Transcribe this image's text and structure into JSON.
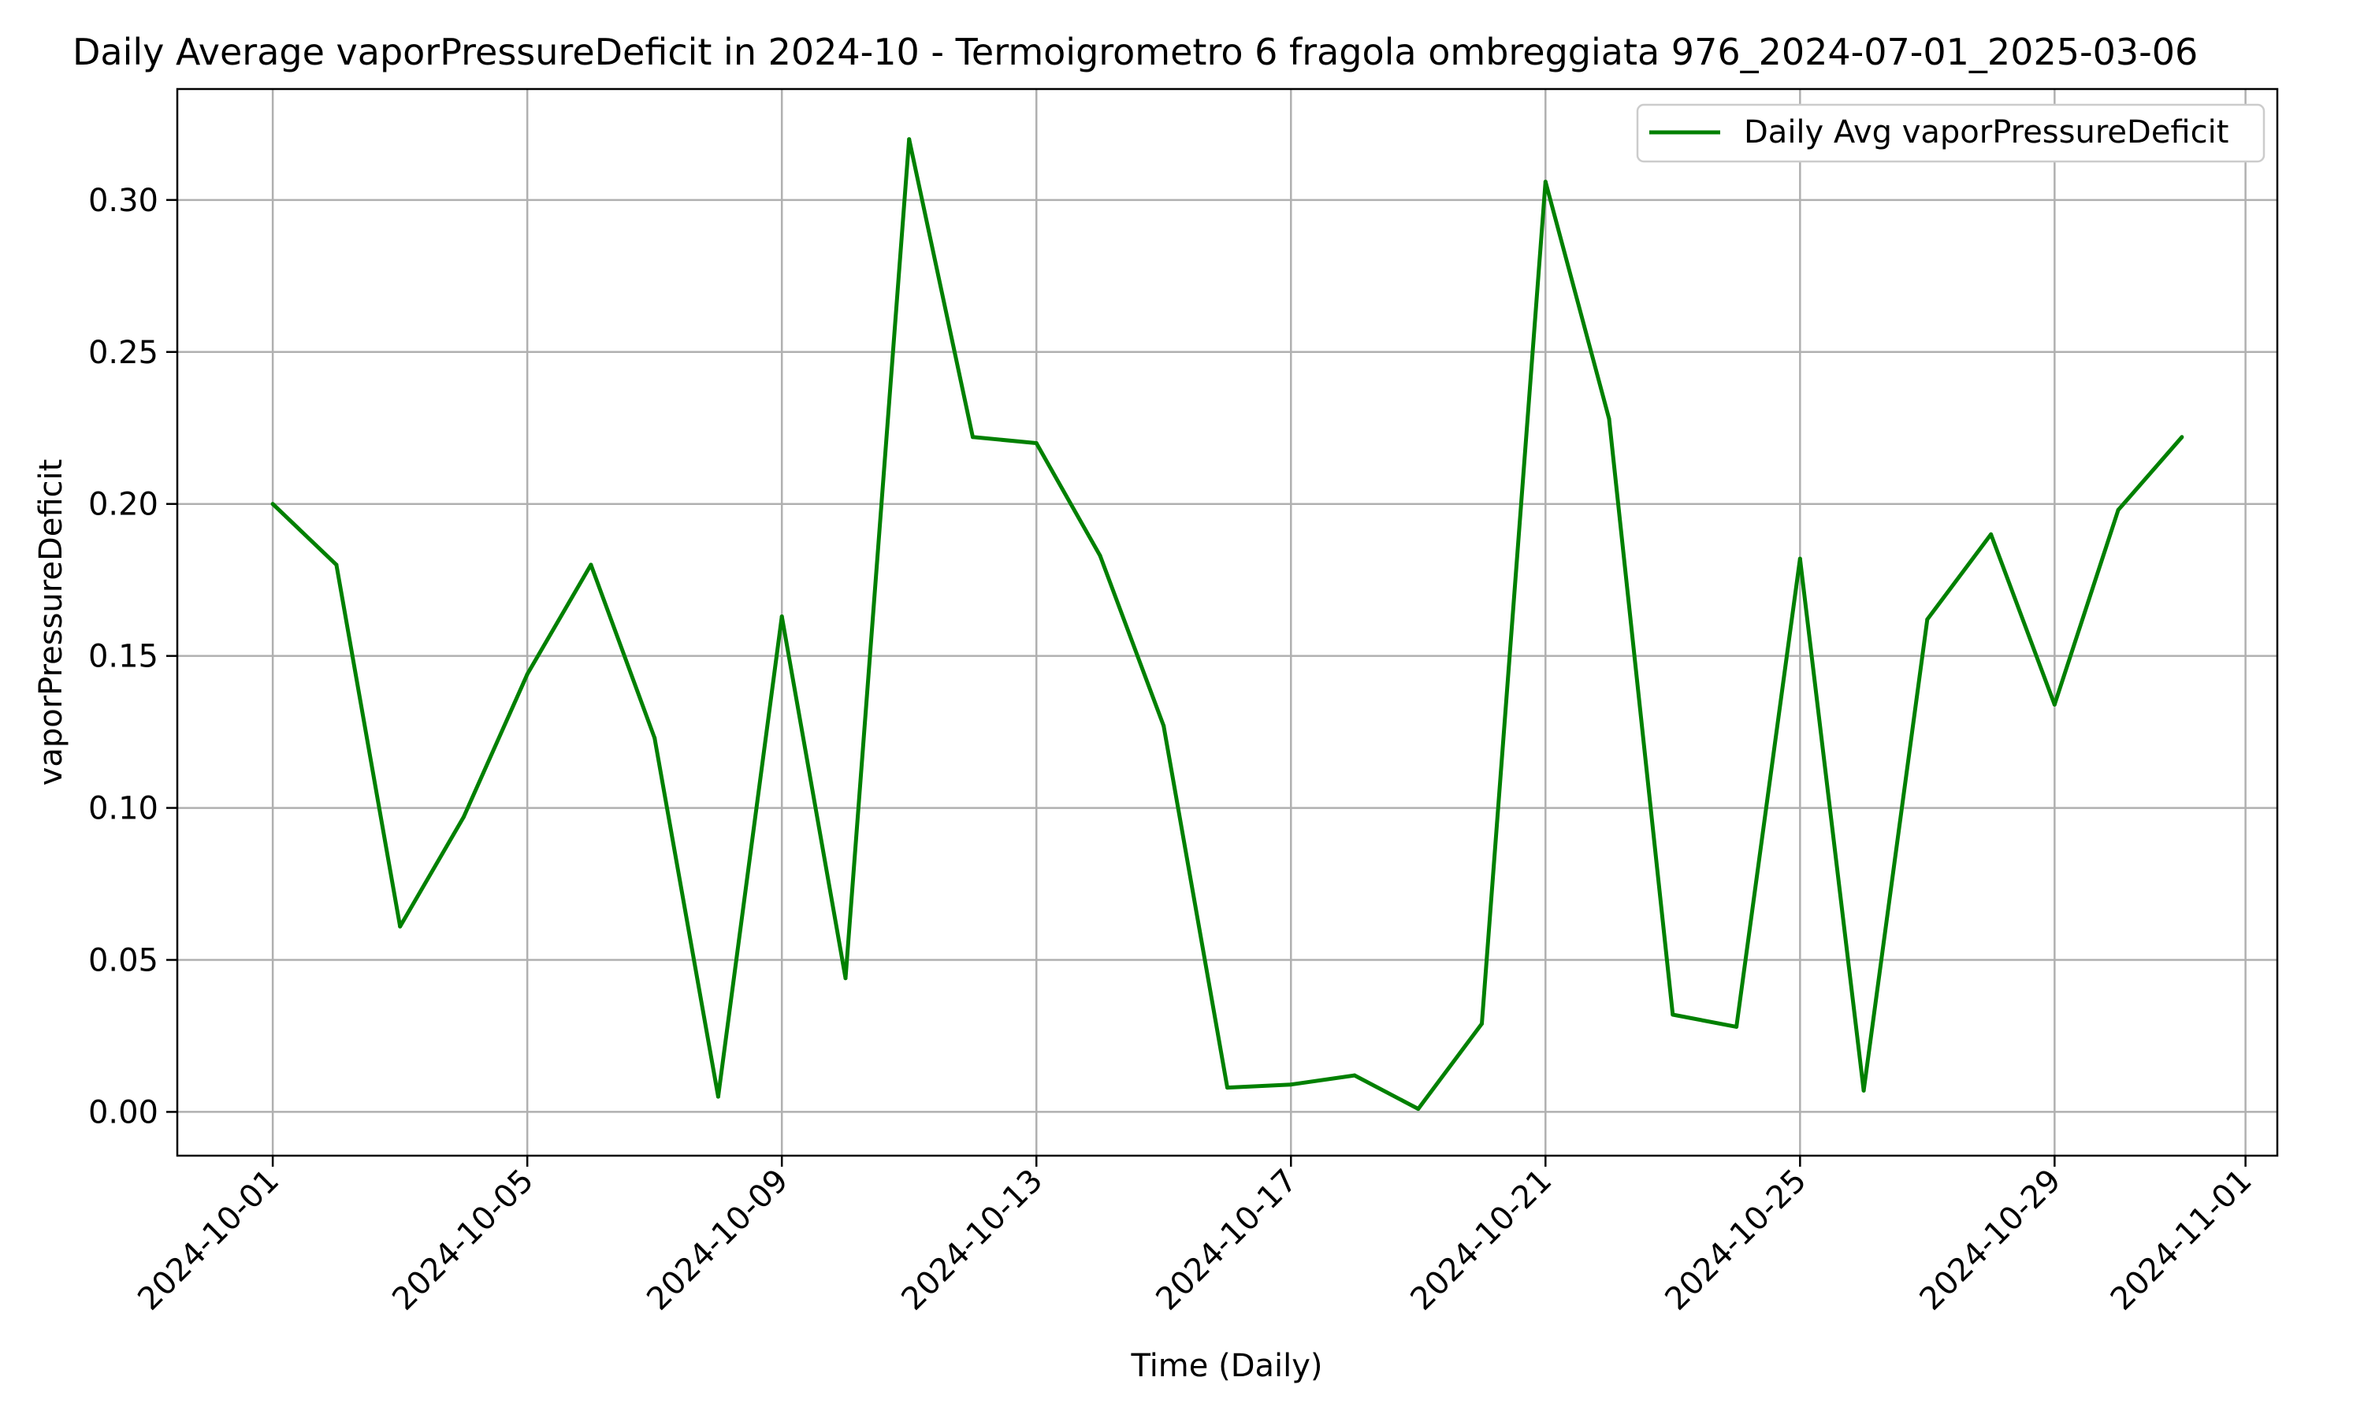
{
  "chart_data": {
    "type": "line",
    "title": "Daily Average vaporPressureDeficit in 2024-10 - Termoigrometro 6 fragola ombreggiata 976_2024-07-01_2025-03-06",
    "xlabel": "Time (Daily)",
    "ylabel": "vaporPressureDeficit",
    "xlim": [
      "2024-09-29.5",
      "2024-11-01.5"
    ],
    "ylim": [
      -0.0144,
      0.3365
    ],
    "x_ticks": [
      "2024-10-01",
      "2024-10-05",
      "2024-10-09",
      "2024-10-13",
      "2024-10-17",
      "2024-10-21",
      "2024-10-25",
      "2024-10-29",
      "2024-11-01"
    ],
    "y_ticks": [
      "0.00",
      "0.05",
      "0.10",
      "0.15",
      "0.20",
      "0.25",
      "0.30"
    ],
    "grid": true,
    "legend_position": "top-right",
    "colors": {
      "series": "#008000",
      "grid": "#b0b0b0"
    },
    "series": [
      {
        "name": "Daily Avg vaporPressureDeficit",
        "x": [
          "2024-10-01",
          "2024-10-02",
          "2024-10-03",
          "2024-10-04",
          "2024-10-05",
          "2024-10-06",
          "2024-10-07",
          "2024-10-08",
          "2024-10-09",
          "2024-10-10",
          "2024-10-11",
          "2024-10-12",
          "2024-10-13",
          "2024-10-14",
          "2024-10-15",
          "2024-10-16",
          "2024-10-17",
          "2024-10-18",
          "2024-10-19",
          "2024-10-20",
          "2024-10-21",
          "2024-10-22",
          "2024-10-23",
          "2024-10-24",
          "2024-10-25",
          "2024-10-26",
          "2024-10-27",
          "2024-10-28",
          "2024-10-29",
          "2024-10-30",
          "2024-10-31"
        ],
        "values": [
          0.2,
          0.18,
          0.061,
          0.097,
          0.144,
          0.18,
          0.123,
          0.005,
          0.163,
          0.044,
          0.32,
          0.222,
          0.22,
          0.183,
          0.127,
          0.008,
          0.009,
          0.012,
          0.001,
          0.029,
          0.306,
          0.228,
          0.032,
          0.028,
          0.182,
          0.007,
          0.162,
          0.19,
          0.134,
          0.198,
          0.222
        ]
      }
    ]
  }
}
